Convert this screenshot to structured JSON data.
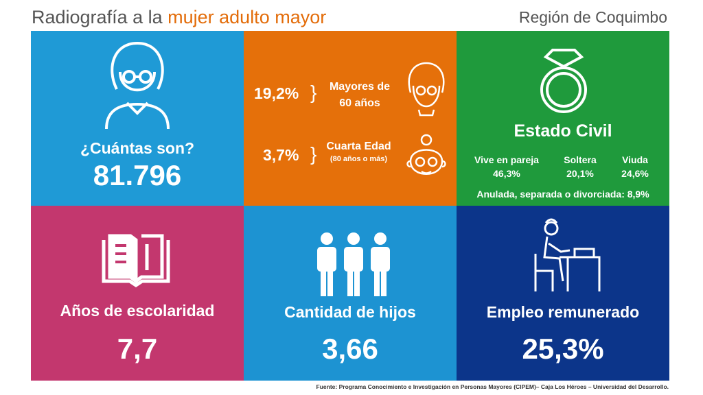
{
  "header": {
    "title_prefix": "Radiografía a la ",
    "title_highlight": "mujer adulto mayor",
    "region": "Región de Coquimbo"
  },
  "colors": {
    "highlight": "#e36c09",
    "tile_population": "#1f9ad6",
    "tile_age": "#e5700a",
    "tile_civil": "#1f9a3c",
    "tile_school": "#c3376e",
    "tile_children": "#1d93d2",
    "tile_employment": "#0c358a"
  },
  "population": {
    "label": "¿Cuántas son?",
    "value": "81.796",
    "icon": "elderly-woman-icon"
  },
  "age": {
    "row1": {
      "value": "19,2%",
      "brace": "}",
      "label_line1": "Mayores de",
      "label_line2": "60 años",
      "icon": "woman-glasses-icon"
    },
    "row2": {
      "value": "3,7%",
      "brace": "}",
      "label_line1": "Cuarta Edad",
      "label_line2": "(80 años o más)",
      "icon": "grandmother-bun-icon"
    }
  },
  "civil": {
    "icon": "ring-icon",
    "title": "Estado Civil",
    "items": [
      {
        "label": "Vive en pareja",
        "value": "46,3%"
      },
      {
        "label": "Soltera",
        "value": "20,1%"
      },
      {
        "label": "Viuda",
        "value": "24,6%"
      }
    ],
    "other": "Anulada, separada o divorciada: 8,9%"
  },
  "schooling": {
    "icon": "open-book-icon",
    "label": "Años de escolaridad",
    "value": "7,7"
  },
  "children": {
    "icon": "people-icon",
    "label": "Cantidad de hijos",
    "value": "3,66"
  },
  "employment": {
    "icon": "woman-at-desk-icon",
    "label": "Empleo remunerado",
    "value": "25,3%"
  },
  "source": "Fuente: Programa Conocimiento e Investigación  en Personas Mayores (CIPEM)–  Caja Los Héroes – Universidad  del Desarrollo."
}
